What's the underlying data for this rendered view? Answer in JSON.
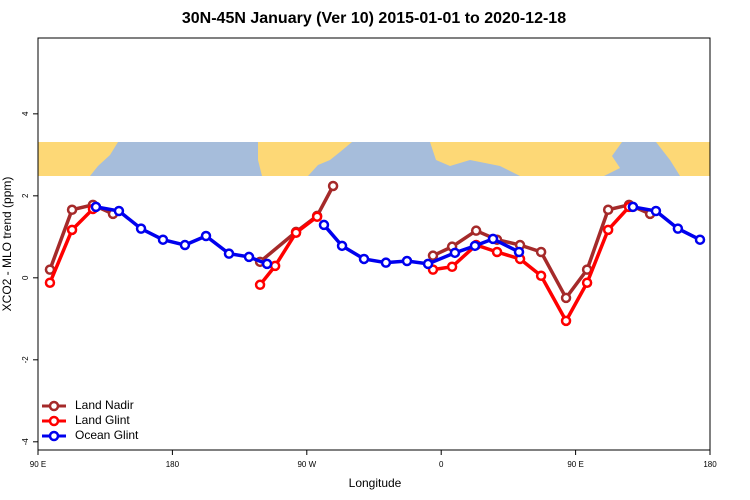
{
  "chart_data": {
    "type": "line",
    "title": "30N-45N January (Ver 10)   2015-01-01 to 2020-12-18",
    "xlabel": "Longitude",
    "ylabel": "XCO2 - MLO trend (ppm)",
    "xlim": [
      90,
      540
    ],
    "ylim": [
      -4.2,
      5.85
    ],
    "xticks": [
      {
        "value": 90,
        "label": "90 E"
      },
      180,
      {
        "value": 270,
        "label": "90 W"
      },
      {
        "value": 360,
        "label": "0"
      },
      {
        "value": 450,
        "label": "90 E"
      },
      {
        "value": 540,
        "label": "180"
      }
    ],
    "yticks": [
      -4,
      -2,
      0,
      2,
      4
    ],
    "legend": "bottomleft",
    "series": [
      {
        "name": "Land Nadir",
        "color": "#a52a2a",
        "x": [
          98,
          112.8,
          126.8,
          140.2,
          null,
          238.7,
          262.8,
          276.9,
          287.6,
          null,
          354.5,
          367.3,
          383.4,
          397.4,
          412.8,
          426.9,
          443.6,
          457.7,
          471.8,
          485.8,
          499.9
        ],
        "values": [
          0.2,
          1.66,
          1.78,
          1.56,
          null,
          0.39,
          1.12,
          1.51,
          2.24,
          null,
          0.54,
          0.76,
          1.15,
          0.93,
          0.8,
          0.63,
          -0.49,
          0.2,
          1.66,
          1.78,
          1.56
        ]
      },
      {
        "name": "Land Glint",
        "color": "#ff0000",
        "x": [
          98,
          112.8,
          126.8,
          null,
          238.7,
          248.8,
          262.8,
          276.9,
          null,
          354.5,
          367.3,
          383.4,
          397.4,
          412.8,
          426.9,
          443.6,
          457.7,
          471.8,
          485.8
        ],
        "values": [
          -0.12,
          1.17,
          1.68,
          null,
          -0.17,
          0.29,
          1.1,
          1.49,
          null,
          0.2,
          0.27,
          0.8,
          0.63,
          0.46,
          0.05,
          -1.05,
          -0.12,
          1.17,
          1.73
        ]
      },
      {
        "name": "Ocean Glint",
        "color": "#0000ee",
        "x": [
          128.8,
          144.2,
          159,
          173.7,
          188.4,
          202.5,
          217.9,
          231.3,
          243.4,
          null,
          281.5,
          293.6,
          308.3,
          323,
          337.1,
          351.2,
          369.2,
          382.6,
          394.7,
          412.1,
          null,
          488.4,
          503.8,
          518.5,
          533.3
        ],
        "values": [
          1.73,
          1.63,
          1.2,
          0.93,
          0.8,
          1.02,
          0.59,
          0.51,
          0.34,
          null,
          1.29,
          0.78,
          0.46,
          0.37,
          0.41,
          0.34,
          0.61,
          0.78,
          0.95,
          0.63,
          null,
          1.73,
          1.63,
          1.2,
          0.93
        ]
      }
    ]
  }
}
